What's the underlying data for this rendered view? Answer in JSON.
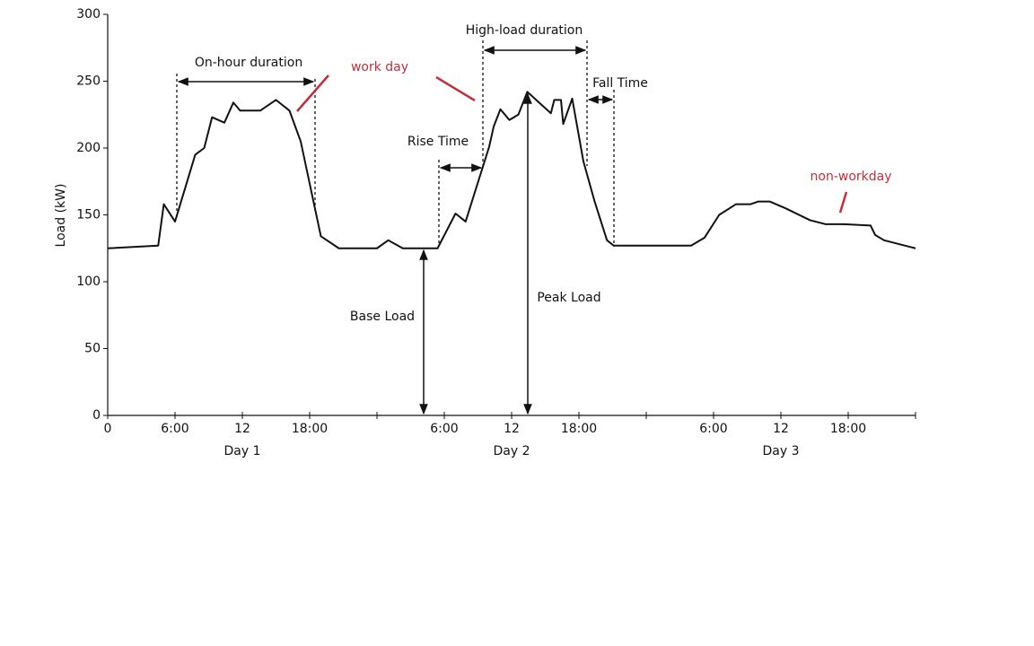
{
  "chart_data": {
    "type": "line",
    "y_label": "Load (kW)",
    "x": [
      0,
      4.5,
      5,
      6,
      7.8,
      8.6,
      9.3,
      10.4,
      11.2,
      11.8,
      13.6,
      15,
      16.2,
      17.2,
      19,
      20.6,
      24,
      25,
      26.3,
      29.4,
      31,
      31.9,
      34,
      34.4,
      35,
      35.8,
      36.6,
      37.4,
      39.5,
      39.8,
      40.4,
      40.6,
      41.4,
      42.4,
      43.4,
      44.5,
      45.1,
      52,
      53.2,
      54.5,
      56,
      57.3,
      58,
      59,
      60.4,
      62.6,
      64,
      65.6,
      68,
      68.4,
      69.2,
      72
    ],
    "series": [
      {
        "name": null,
        "color": "#111111",
        "values": [
          125,
          127,
          158,
          145,
          195,
          200,
          223,
          219,
          234,
          228,
          228,
          236,
          228,
          205,
          134,
          125,
          125,
          131,
          125,
          125,
          151,
          145,
          201,
          216,
          229,
          221,
          225,
          242,
          226,
          236,
          236,
          218,
          237,
          190,
          160,
          131,
          127,
          127,
          133,
          150,
          158,
          158,
          160,
          160,
          155,
          146,
          143,
          143,
          142,
          135,
          131,
          125
        ]
      }
    ],
    "xlim": [
      0,
      72
    ],
    "ylim": [
      0,
      300
    ],
    "yticks": [
      0,
      50,
      100,
      150,
      200,
      250,
      300
    ],
    "xticks": [
      0,
      {
        "value": 6,
        "label": "6:00"
      },
      {
        "value": 12,
        "label": "12"
      },
      {
        "value": 18,
        "label": "18:00"
      },
      {
        "value": 24,
        "label": null
      },
      {
        "value": 30,
        "label": "6:00"
      },
      {
        "value": 36,
        "label": "12"
      },
      {
        "value": 42,
        "label": "18:00"
      },
      {
        "value": 48,
        "label": null
      },
      {
        "value": 54,
        "label": "6:00"
      },
      {
        "value": 60,
        "label": "12"
      },
      {
        "value": 66,
        "label": "18:00"
      },
      {
        "value": 72,
        "label": null
      }
    ],
    "day_labels": [
      {
        "x": 12,
        "label": "Day 1"
      },
      {
        "x": 36,
        "label": "Day 2"
      },
      {
        "x": 60,
        "label": "Day 3"
      }
    ],
    "annotations": [
      "On-hour duration",
      "work day",
      "High-load duration",
      "Fall Time",
      "Rise Time",
      "non-workday",
      "Base Load",
      "Peak Load"
    ]
  }
}
